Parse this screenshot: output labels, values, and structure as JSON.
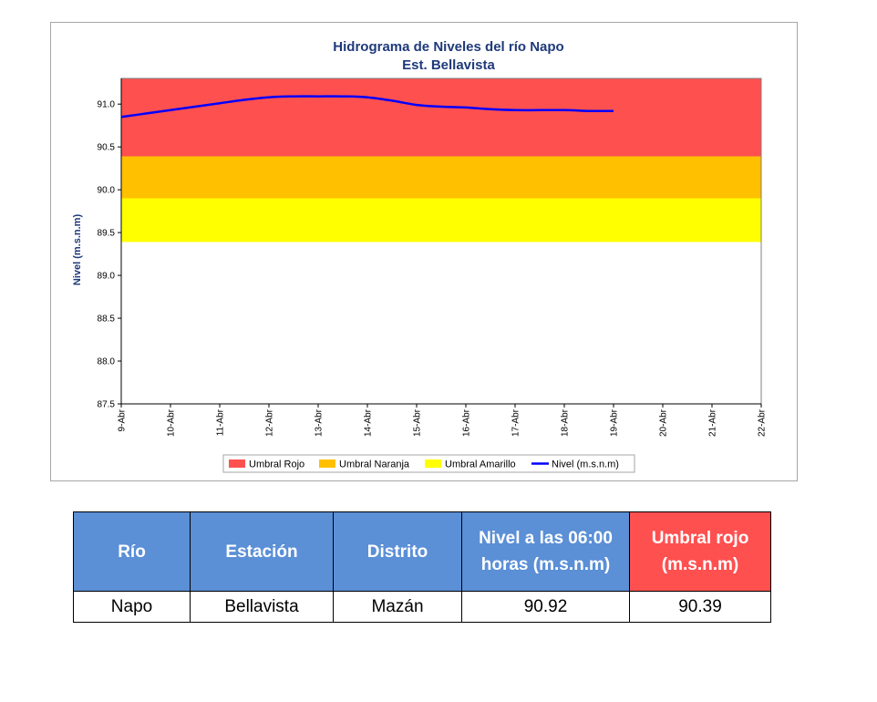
{
  "chart_data": {
    "type": "line",
    "title": "Hidrograma de Niveles del río Napo",
    "subtitle": "Est. Bellavista",
    "ylabel": "Nivel (m.s.n.m)",
    "xlabel": "",
    "x_categories": [
      "9-Abr",
      "10-Abr",
      "11-Abr",
      "12-Abr",
      "13-Abr",
      "14-Abr",
      "15-Abr",
      "16-Abr",
      "17-Abr",
      "18-Abr",
      "19-Abr",
      "20-Abr",
      "21-Abr",
      "22-Abr"
    ],
    "ylim": [
      87.5,
      91.3
    ],
    "yticks": [
      87.5,
      88.0,
      88.5,
      89.0,
      89.5,
      90.0,
      90.5,
      91.0
    ],
    "ytick_labels": [
      "87.5",
      "88.0",
      "88.5",
      "89.0",
      "89.5",
      "90.0",
      "90.5",
      "91.0"
    ],
    "bands": [
      {
        "name": "Umbral Rojo",
        "from": 90.39,
        "to": 91.3,
        "color": "#ff5050"
      },
      {
        "name": "Umbral Naranja",
        "from": 89.9,
        "to": 90.39,
        "color": "#ffc000"
      },
      {
        "name": "Umbral Amarillo",
        "from": 89.39,
        "to": 89.9,
        "color": "#ffff00"
      }
    ],
    "series": [
      {
        "name": "Nivel (m.s.n.m)",
        "color": "#0000ff",
        "x": [
          0,
          0.5,
          1,
          1.5,
          2,
          2.5,
          3,
          3.5,
          4,
          4.5,
          5,
          5.5,
          6,
          6.5,
          7,
          7.5,
          8,
          8.5,
          9,
          9.5,
          10
        ],
        "values": [
          90.85,
          90.89,
          90.93,
          90.97,
          91.01,
          91.05,
          91.08,
          91.09,
          91.09,
          91.09,
          91.08,
          91.04,
          90.99,
          90.97,
          90.96,
          90.94,
          90.93,
          90.93,
          90.93,
          90.92,
          90.92
        ]
      }
    ],
    "legend": {
      "position": "bottom",
      "entries": [
        "Umbral Rojo",
        "Umbral Naranja",
        "Umbral Amarillo",
        "Nivel (m.s.n.m)"
      ]
    },
    "grid": false
  },
  "table": {
    "headers": [
      "Río",
      "Estación",
      "Distrito",
      "Nivel a las 06:00 horas (m.s.n.m)",
      "Umbral rojo (m.s.n.m)"
    ],
    "header_colors": [
      "#5b8fd6",
      "#5b8fd6",
      "#5b8fd6",
      "#5b8fd6",
      "#ff5050"
    ],
    "rows": [
      [
        "Napo",
        "Bellavista",
        "Mazán",
        "90.92",
        "90.39"
      ]
    ]
  }
}
